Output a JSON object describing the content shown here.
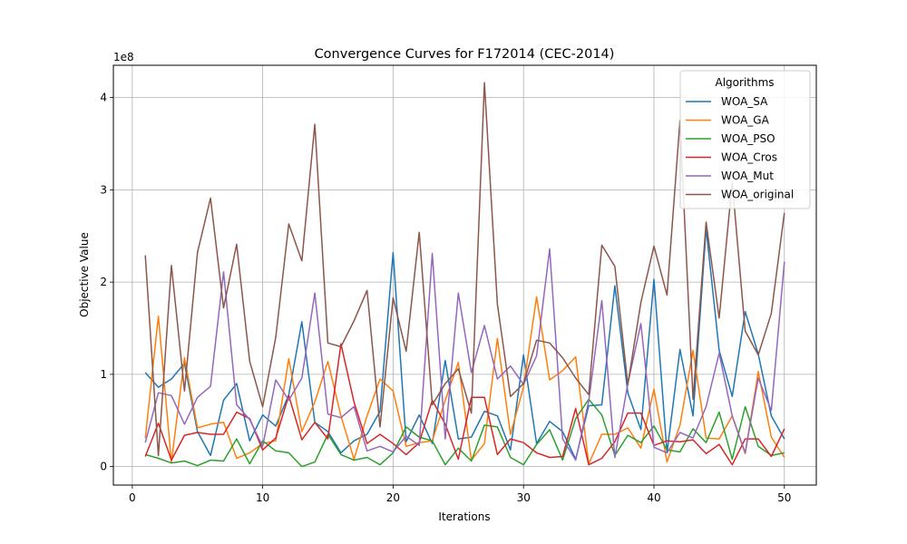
{
  "chart_data": {
    "type": "line",
    "title": "Convergence Curves for F172014 (CEC-2014)",
    "xlabel": "Iterations",
    "ylabel": "Objective Value",
    "y_scale_label": "1e8",
    "xlim": [
      -1.45,
      52.45
    ],
    "ylim": [
      -0.2,
      4.35
    ],
    "x_ticks": [
      0,
      10,
      20,
      30,
      40,
      50
    ],
    "y_ticks": [
      0,
      1,
      2,
      3,
      4
    ],
    "grid": true,
    "legend": {
      "title": "Algorithms",
      "placement": "top-right"
    },
    "x": [
      1,
      2,
      3,
      4,
      5,
      6,
      7,
      8,
      9,
      10,
      11,
      12,
      13,
      14,
      15,
      16,
      17,
      18,
      19,
      20,
      21,
      22,
      23,
      24,
      25,
      26,
      27,
      28,
      29,
      30,
      31,
      32,
      33,
      34,
      35,
      36,
      37,
      38,
      39,
      40,
      41,
      42,
      43,
      44,
      45,
      46,
      47,
      48,
      49,
      50
    ],
    "series": [
      {
        "name": "WOA_SA",
        "color": "#1f77b4",
        "values": [
          1.02,
          0.86,
          0.95,
          1.12,
          0.38,
          0.12,
          0.72,
          0.9,
          0.28,
          0.56,
          0.44,
          0.78,
          1.57,
          0.48,
          0.38,
          0.15,
          0.28,
          0.35,
          0.6,
          2.32,
          0.27,
          0.56,
          0.25,
          1.15,
          0.3,
          0.32,
          0.6,
          0.55,
          0.18,
          1.21,
          0.25,
          0.49,
          0.38,
          0.08,
          0.66,
          0.67,
          1.96,
          0.8,
          0.4,
          2.03,
          0.15,
          1.27,
          0.55,
          2.58,
          1.26,
          0.76,
          1.68,
          1.22,
          0.55,
          0.3
        ]
      },
      {
        "name": "WOA_GA",
        "color": "#ff7f0e",
        "values": [
          0.31,
          1.63,
          0.05,
          1.18,
          0.42,
          0.46,
          0.48,
          0.09,
          0.15,
          0.25,
          0.28,
          1.17,
          0.38,
          0.7,
          1.14,
          0.55,
          0.08,
          0.55,
          0.95,
          0.82,
          0.22,
          0.26,
          0.28,
          0.72,
          1.13,
          0.07,
          0.25,
          1.39,
          0.35,
          0.86,
          1.84,
          0.94,
          1.04,
          1.19,
          0.03,
          0.35,
          0.35,
          0.42,
          0.2,
          0.84,
          0.05,
          0.45,
          1.26,
          0.31,
          0.3,
          0.55,
          0.14,
          1.03,
          0.32,
          0.1
        ]
      },
      {
        "name": "WOA_PSO",
        "color": "#2ca02c",
        "values": [
          0.13,
          0.09,
          0.04,
          0.06,
          0.01,
          0.07,
          0.06,
          0.3,
          0.03,
          0.28,
          0.17,
          0.15,
          0.0,
          0.05,
          0.35,
          0.13,
          0.07,
          0.1,
          0.02,
          0.15,
          0.43,
          0.32,
          0.28,
          0.02,
          0.2,
          0.06,
          0.45,
          0.43,
          0.1,
          0.02,
          0.24,
          0.4,
          0.07,
          0.52,
          0.73,
          0.56,
          0.12,
          0.34,
          0.26,
          0.44,
          0.18,
          0.16,
          0.41,
          0.26,
          0.59,
          0.08,
          0.65,
          0.22,
          0.12,
          0.15
        ]
      },
      {
        "name": "WOA_Cros",
        "color": "#d62728",
        "values": [
          0.11,
          0.47,
          0.07,
          0.34,
          0.37,
          0.35,
          0.35,
          0.59,
          0.52,
          0.18,
          0.31,
          0.77,
          0.29,
          0.48,
          0.3,
          1.33,
          0.7,
          0.25,
          0.35,
          0.25,
          0.13,
          0.26,
          0.72,
          0.46,
          0.08,
          0.75,
          0.75,
          0.13,
          0.3,
          0.26,
          0.15,
          0.1,
          0.11,
          0.63,
          0.02,
          0.09,
          0.27,
          0.58,
          0.58,
          0.23,
          0.28,
          0.27,
          0.29,
          0.14,
          0.24,
          0.02,
          0.3,
          0.3,
          0.11,
          0.41
        ]
      },
      {
        "name": "WOA_Mut",
        "color": "#9467bd",
        "values": [
          0.26,
          0.8,
          0.77,
          0.46,
          0.75,
          0.87,
          2.11,
          0.67,
          0.51,
          0.22,
          0.94,
          0.72,
          0.96,
          1.88,
          0.57,
          0.53,
          0.65,
          0.17,
          0.22,
          0.16,
          0.33,
          0.23,
          2.31,
          0.3,
          1.88,
          1.02,
          1.53,
          0.95,
          1.09,
          0.89,
          1.2,
          2.36,
          0.3,
          0.07,
          0.71,
          1.8,
          0.1,
          0.9,
          1.55,
          0.21,
          0.15,
          0.37,
          0.31,
          0.65,
          1.23,
          0.55,
          0.15,
          0.96,
          0.61,
          2.22
        ]
      },
      {
        "name": "WOA_original",
        "color": "#8c564b",
        "values": [
          2.29,
          0.12,
          2.18,
          0.82,
          2.32,
          2.91,
          1.72,
          2.41,
          1.14,
          0.65,
          1.4,
          2.63,
          2.23,
          3.71,
          1.34,
          1.3,
          1.58,
          1.91,
          0.43,
          1.83,
          1.25,
          2.54,
          0.67,
          0.9,
          1.06,
          0.58,
          4.16,
          1.76,
          0.76,
          0.9,
          1.37,
          1.34,
          1.18,
          0.96,
          0.78,
          2.4,
          2.17,
          0.89,
          1.78,
          2.39,
          1.86,
          3.75,
          0.73,
          2.65,
          1.61,
          3.08,
          1.47,
          1.21,
          1.66,
          2.75
        ]
      }
    ]
  }
}
